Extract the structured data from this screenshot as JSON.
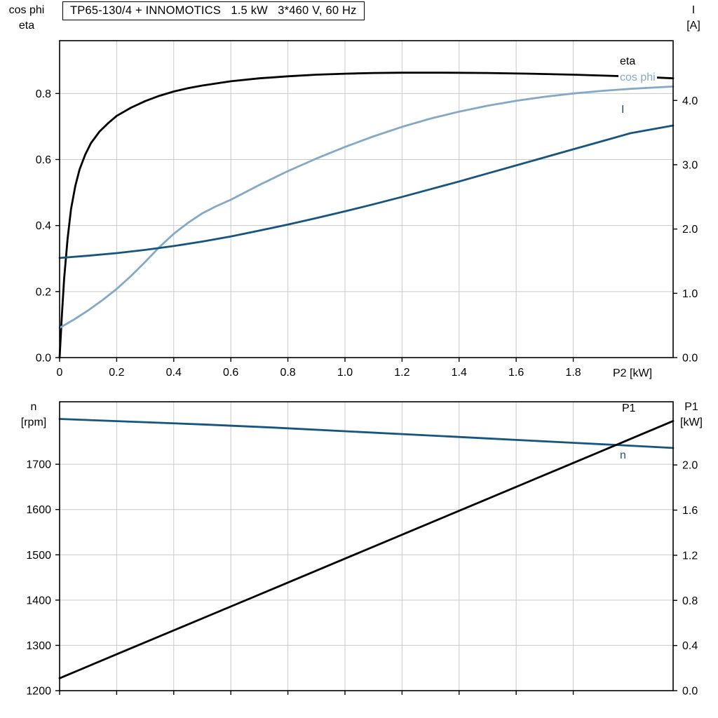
{
  "title": "TP65-130/4 + INNOMOTICS   1.5 kW   3*460 V, 60 Hz",
  "colors": {
    "black": "#000000",
    "dark_blue": "#15557f",
    "light_blue": "#84a9c8",
    "grid": "#c9c9c9",
    "axis": "#000000",
    "background": "#ffffff"
  },
  "chart_data": [
    {
      "type": "line",
      "title": "TP65-130/4 + INNOMOTICS   1.5 kW   3*460 V, 60 Hz",
      "xlabel": "P2 [kW]",
      "ylabel_left_lines": [
        "cos phi",
        "eta"
      ],
      "ylabel_right_lines": [
        "I",
        "[A]"
      ],
      "xlim": [
        0,
        2.15
      ],
      "ylim_left": [
        0,
        0.96
      ],
      "ylim_right": [
        0,
        4.93
      ],
      "grid": true,
      "legend_position": "inline-right",
      "xticks": {
        "values": [
          0,
          0.2,
          0.4,
          0.6,
          0.8,
          1.0,
          1.2,
          1.4,
          1.6,
          1.8
        ],
        "labels": [
          "0",
          "0.2",
          "0.4",
          "0.6",
          "0.8",
          "1.0",
          "1.2",
          "1.4",
          "1.6",
          "1.8"
        ],
        "show_labels": true
      },
      "yticks_left": {
        "values": [
          0,
          0.2,
          0.4,
          0.6,
          0.8
        ],
        "labels": [
          "0.0",
          "0.2",
          "0.4",
          "0.6",
          "0.8"
        ]
      },
      "yticks_right": {
        "values": [
          0,
          1,
          2,
          3,
          4
        ],
        "labels": [
          "0.0",
          "1.0",
          "2.0",
          "3.0",
          "4.0"
        ]
      },
      "series": [
        {
          "name": "eta",
          "axis": "left",
          "color": "black",
          "points": [
            [
              0,
              0
            ],
            [
              0.008,
              0.13
            ],
            [
              0.016,
              0.24
            ],
            [
              0.028,
              0.36
            ],
            [
              0.04,
              0.45
            ],
            [
              0.055,
              0.52
            ],
            [
              0.07,
              0.57
            ],
            [
              0.09,
              0.615
            ],
            [
              0.11,
              0.65
            ],
            [
              0.14,
              0.685
            ],
            [
              0.17,
              0.71
            ],
            [
              0.2,
              0.732
            ],
            [
              0.25,
              0.757
            ],
            [
              0.3,
              0.777
            ],
            [
              0.35,
              0.793
            ],
            [
              0.4,
              0.806
            ],
            [
              0.45,
              0.816
            ],
            [
              0.5,
              0.824
            ],
            [
              0.6,
              0.837
            ],
            [
              0.7,
              0.846
            ],
            [
              0.8,
              0.852
            ],
            [
              0.9,
              0.857
            ],
            [
              1.0,
              0.86
            ],
            [
              1.1,
              0.862
            ],
            [
              1.2,
              0.863
            ],
            [
              1.35,
              0.863
            ],
            [
              1.5,
              0.862
            ],
            [
              1.65,
              0.86
            ],
            [
              1.8,
              0.857
            ],
            [
              1.95,
              0.853
            ],
            [
              2.05,
              0.85
            ],
            [
              2.15,
              0.846
            ]
          ]
        },
        {
          "name": "cos phi",
          "axis": "left",
          "color": "light_blue",
          "points": [
            [
              0,
              0.09
            ],
            [
              0.05,
              0.115
            ],
            [
              0.1,
              0.143
            ],
            [
              0.15,
              0.174
            ],
            [
              0.2,
              0.208
            ],
            [
              0.25,
              0.247
            ],
            [
              0.3,
              0.29
            ],
            [
              0.35,
              0.335
            ],
            [
              0.4,
              0.375
            ],
            [
              0.45,
              0.408
            ],
            [
              0.5,
              0.437
            ],
            [
              0.55,
              0.459
            ],
            [
              0.6,
              0.478
            ],
            [
              0.7,
              0.523
            ],
            [
              0.8,
              0.565
            ],
            [
              0.9,
              0.603
            ],
            [
              1.0,
              0.638
            ],
            [
              1.1,
              0.67
            ],
            [
              1.2,
              0.699
            ],
            [
              1.3,
              0.724
            ],
            [
              1.4,
              0.745
            ],
            [
              1.5,
              0.763
            ],
            [
              1.6,
              0.778
            ],
            [
              1.7,
              0.79
            ],
            [
              1.8,
              0.8
            ],
            [
              1.9,
              0.808
            ],
            [
              2.0,
              0.814
            ],
            [
              2.15,
              0.821
            ]
          ]
        },
        {
          "name": "I",
          "axis": "right",
          "color": "dark_blue",
          "points": [
            [
              0,
              1.55
            ],
            [
              0.1,
              1.585
            ],
            [
              0.2,
              1.625
            ],
            [
              0.3,
              1.675
            ],
            [
              0.4,
              1.735
            ],
            [
              0.5,
              1.805
            ],
            [
              0.6,
              1.885
            ],
            [
              0.7,
              1.975
            ],
            [
              0.8,
              2.07
            ],
            [
              0.9,
              2.17
            ],
            [
              1.0,
              2.275
            ],
            [
              1.1,
              2.385
            ],
            [
              1.2,
              2.5
            ],
            [
              1.3,
              2.62
            ],
            [
              1.4,
              2.74
            ],
            [
              1.5,
              2.865
            ],
            [
              1.6,
              2.99
            ],
            [
              1.7,
              3.115
            ],
            [
              1.8,
              3.24
            ],
            [
              1.9,
              3.365
            ],
            [
              2.0,
              3.49
            ],
            [
              2.15,
              3.61
            ]
          ]
        }
      ]
    },
    {
      "type": "line",
      "xlabel": "",
      "ylabel_left_lines": [
        "n",
        "[rpm]"
      ],
      "ylabel_right_lines": [
        "P1",
        "[kW]"
      ],
      "xlim": [
        0,
        2.15
      ],
      "ylim_left": [
        1200,
        1838
      ],
      "ylim_right": [
        0,
        2.56
      ],
      "grid": true,
      "legend_position": "inline-right",
      "xticks": {
        "values": [
          0,
          0.2,
          0.4,
          0.6,
          0.8,
          1.0,
          1.2,
          1.4,
          1.6,
          1.8
        ],
        "labels": [
          "0",
          "0.2",
          "0.4",
          "0.6",
          "0.8",
          "1.0",
          "1.2",
          "1.4",
          "1.6",
          "1.8"
        ],
        "show_labels": false
      },
      "yticks_left": {
        "values": [
          1200,
          1300,
          1400,
          1500,
          1600,
          1700
        ],
        "labels": [
          "1200",
          "1300",
          "1400",
          "1500",
          "1600",
          "1700"
        ]
      },
      "yticks_right": {
        "values": [
          0,
          0.4,
          0.8,
          1.2,
          1.6,
          2.0
        ],
        "labels": [
          "0.0",
          "0.4",
          "0.8",
          "1.2",
          "1.6",
          "2.0"
        ]
      },
      "series": [
        {
          "name": "n",
          "axis": "left",
          "color": "dark_blue",
          "points": [
            [
              0,
              1800
            ],
            [
              0.25,
              1794
            ],
            [
              0.5,
              1788
            ],
            [
              0.75,
              1781
            ],
            [
              1.0,
              1773
            ],
            [
              1.25,
              1765
            ],
            [
              1.5,
              1757
            ],
            [
              1.75,
              1749
            ],
            [
              2.0,
              1741
            ],
            [
              2.15,
              1736
            ]
          ]
        },
        {
          "name": "P1",
          "axis": "right",
          "color": "black",
          "points": [
            [
              0,
              0.11
            ],
            [
              0.25,
              0.375
            ],
            [
              0.5,
              0.64
            ],
            [
              0.75,
              0.905
            ],
            [
              1.0,
              1.17
            ],
            [
              1.25,
              1.435
            ],
            [
              1.5,
              1.7
            ],
            [
              1.75,
              1.965
            ],
            [
              2.0,
              2.23
            ],
            [
              2.15,
              2.39
            ]
          ]
        }
      ]
    }
  ]
}
